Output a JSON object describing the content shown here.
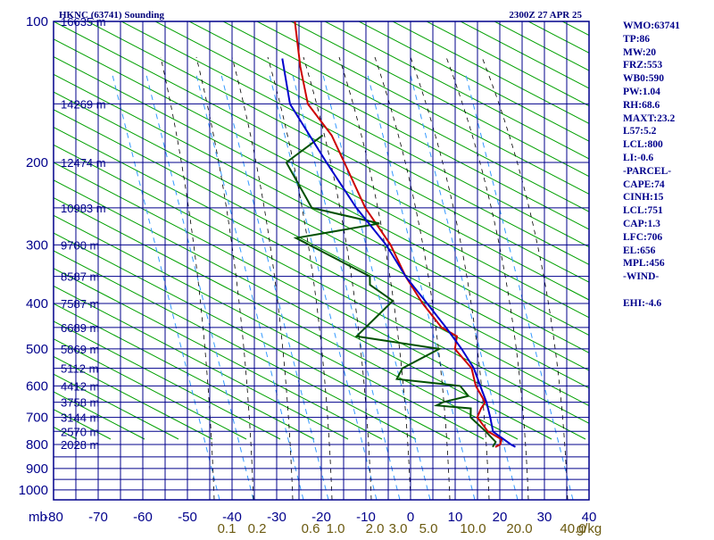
{
  "header": {
    "station": "HKNC (63741) Sounding",
    "time": "2300Z 27 APR 25"
  },
  "indices": [
    "WMO:63741",
    "TP:86",
    "MW:20",
    "FRZ:553",
    "WB0:590",
    "PW:1.04",
    "RH:68.6",
    "MAXT:23.2",
    "L57:5.2",
    "LCL:800",
    "LI:-0.6",
    "-PARCEL-",
    "CAPE:74",
    "CINH:15",
    "LCL:751",
    "CAP:1.3",
    "LFC:706",
    "EL:656",
    "MPL:456",
    "-WIND-",
    "",
    "EHI:-4.6"
  ],
  "colors": {
    "frame": "#00008b",
    "dry_adiabat": "#00a000",
    "moist_adiabat": "#000000",
    "mixing_ratio": "#3399ff",
    "temperature": "#cc0000",
    "dewpoint": "#005000",
    "parcel": "#0000cc",
    "mixing_ratio_labels": "#6b5a10"
  },
  "chart_data": {
    "type": "line",
    "title": "HKNC (63741) Sounding",
    "valid_time": "2300Z 27 APR 25",
    "x_unit_label": "mb",
    "x_ticks": [
      -80,
      -70,
      -60,
      -50,
      -40,
      -30,
      -20,
      -10,
      0,
      10,
      20,
      30,
      40
    ],
    "xlim": [
      -80,
      40
    ],
    "y_axis": "pressure",
    "y_ticks": [
      100,
      200,
      300,
      400,
      500,
      600,
      700,
      800,
      900,
      1000
    ],
    "ylim": [
      1000,
      100
    ],
    "y_scale": "log",
    "height_labels": [
      {
        "p": 100,
        "text": "16635 m"
      },
      {
        "p": 150,
        "text": "14269 m"
      },
      {
        "p": 200,
        "text": "12474 m"
      },
      {
        "p": 250,
        "text": "10983 m"
      },
      {
        "p": 300,
        "text": "9700 m"
      },
      {
        "p": 350,
        "text": "8587 m"
      },
      {
        "p": 400,
        "text": "7587 m"
      },
      {
        "p": 450,
        "text": "6689 m"
      },
      {
        "p": 500,
        "text": "5869 m"
      },
      {
        "p": 550,
        "text": "5112 m"
      },
      {
        "p": 600,
        "text": "4412 m"
      },
      {
        "p": 650,
        "text": "3758 m"
      },
      {
        "p": 700,
        "text": "3144 m"
      },
      {
        "p": 750,
        "text": "2570 m"
      },
      {
        "p": 800,
        "text": "2028 m"
      }
    ],
    "mixing_ratio_labels": [
      "0.1",
      "0.2",
      "0.6",
      "1.0",
      "2.0",
      "3.0",
      "5.0",
      "10.0",
      "20.0",
      "40.0",
      "g/kg"
    ],
    "series": [
      {
        "role": "temperature",
        "points": [
          {
            "p": 100,
            "t": -80.5
          },
          {
            "p": 125,
            "t": -74
          },
          {
            "p": 150,
            "t": -68
          },
          {
            "p": 175,
            "t": -59
          },
          {
            "p": 200,
            "t": -53
          },
          {
            "p": 250,
            "t": -43
          },
          {
            "p": 300,
            "t": -33
          },
          {
            "p": 350,
            "t": -26
          },
          {
            "p": 400,
            "t": -19
          },
          {
            "p": 450,
            "t": -12
          },
          {
            "p": 470,
            "t": -7.5
          },
          {
            "p": 500,
            "t": -6.5
          },
          {
            "p": 550,
            "t": -0.5
          },
          {
            "p": 600,
            "t": 2.5
          },
          {
            "p": 650,
            "t": 6.5
          },
          {
            "p": 670,
            "t": 6.3
          },
          {
            "p": 700,
            "t": 6.5
          },
          {
            "p": 750,
            "t": 10.5
          },
          {
            "p": 780,
            "t": 14.5
          },
          {
            "p": 800,
            "t": 14.8
          },
          {
            "p": 810,
            "t": 14.0
          }
        ]
      },
      {
        "role": "dewpoint",
        "points": [
          {
            "p": 175,
            "t": -61
          },
          {
            "p": 200,
            "t": -66
          },
          {
            "p": 240,
            "t": -57
          },
          {
            "p": 250,
            "t": -55
          },
          {
            "p": 270,
            "t": -38
          },
          {
            "p": 290,
            "t": -55
          },
          {
            "p": 350,
            "t": -34
          },
          {
            "p": 365,
            "t": -33
          },
          {
            "p": 395,
            "t": -26
          },
          {
            "p": 470,
            "t": -30
          },
          {
            "p": 500,
            "t": -10
          },
          {
            "p": 550,
            "t": -16
          },
          {
            "p": 580,
            "t": -16
          },
          {
            "p": 600,
            "t": -1
          },
          {
            "p": 630,
            "t": 2
          },
          {
            "p": 650,
            "t": -3
          },
          {
            "p": 660,
            "t": -4
          },
          {
            "p": 670,
            "t": 4
          },
          {
            "p": 700,
            "t": 5
          },
          {
            "p": 750,
            "t": 10
          },
          {
            "p": 790,
            "t": 13.5
          },
          {
            "p": 810,
            "t": 13.4
          }
        ]
      },
      {
        "role": "parcel",
        "points": [
          {
            "p": 120,
            "t": -79
          },
          {
            "p": 150,
            "t": -72
          },
          {
            "p": 200,
            "t": -57
          },
          {
            "p": 250,
            "t": -45
          },
          {
            "p": 300,
            "t": -34
          },
          {
            "p": 350,
            "t": -26
          },
          {
            "p": 400,
            "t": -18
          },
          {
            "p": 450,
            "t": -11
          },
          {
            "p": 500,
            "t": -5
          },
          {
            "p": 550,
            "t": 0
          },
          {
            "p": 600,
            "t": 3.5
          },
          {
            "p": 650,
            "t": 6.8
          },
          {
            "p": 700,
            "t": 9.4
          },
          {
            "p": 751,
            "t": 11.7
          },
          {
            "p": 800,
            "t": 17.2
          },
          {
            "p": 810,
            "t": 18.5
          }
        ]
      }
    ],
    "grid": true
  }
}
